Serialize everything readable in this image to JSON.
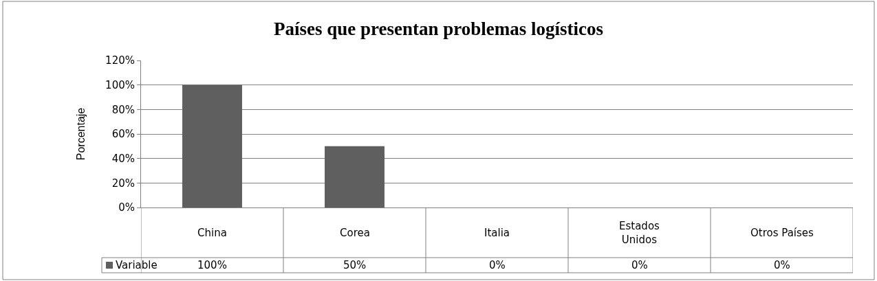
{
  "chart_data": {
    "type": "bar",
    "title": "Países que presentan problemas logísticos",
    "ylabel": "Porcentaje",
    "categories": [
      "China",
      "Corea",
      "Italia",
      "Estados Unidos",
      "Otros Países"
    ],
    "series": [
      {
        "name": "Variable",
        "color": "#5f5f5f",
        "values": [
          100,
          50,
          0,
          0,
          0
        ],
        "value_labels": [
          "100%",
          "50%",
          "0%",
          "0%",
          "0%"
        ]
      }
    ],
    "ylim": [
      0,
      120
    ],
    "yticks": [
      {
        "value": 0,
        "label": "0%"
      },
      {
        "value": 20,
        "label": "20%"
      },
      {
        "value": 40,
        "label": "40%"
      },
      {
        "value": 60,
        "label": "60%"
      },
      {
        "value": 80,
        "label": "80%"
      },
      {
        "value": 100,
        "label": "100%"
      },
      {
        "value": 120,
        "label": "120%"
      }
    ],
    "grid": "y",
    "legend": "bottom left"
  }
}
